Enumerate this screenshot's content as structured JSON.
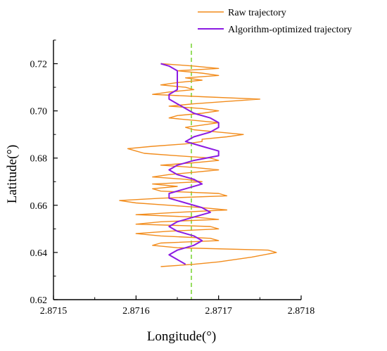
{
  "chart_data": {
    "type": "line",
    "xlabel": "Longitude(°)",
    "ylabel": "Latitude(°)",
    "xlim": [
      2.8715,
      2.8718
    ],
    "ylim": [
      0.62,
      0.73
    ],
    "x_ticks": [
      {
        "value": 2.8715,
        "label": "2.8715"
      },
      {
        "value": 2.8716,
        "label": "2.8716"
      },
      {
        "value": 2.8717,
        "label": "2.8717"
      },
      {
        "value": 2.8718,
        "label": "2.8718"
      }
    ],
    "y_ticks": [
      {
        "value": 0.62,
        "label": "0.62"
      },
      {
        "value": 0.64,
        "label": "0.64"
      },
      {
        "value": 0.66,
        "label": "0.66"
      },
      {
        "value": 0.68,
        "label": "0.68"
      },
      {
        "value": 0.7,
        "label": "0.70"
      },
      {
        "value": 0.72,
        "label": "0.72"
      }
    ],
    "legend_position": "top-right, outside plot",
    "grid": false,
    "reference_line": {
      "x": 2.871667,
      "style": "dashed",
      "color": "#7ed63a"
    },
    "series": [
      {
        "name": "Raw trajectory",
        "color": "#f28c1c",
        "points": [
          [
            2.87163,
            0.634
          ],
          [
            2.87167,
            0.635
          ],
          [
            2.8717,
            0.636
          ],
          [
            2.87174,
            0.638
          ],
          [
            2.87177,
            0.64
          ],
          [
            2.87176,
            0.641
          ],
          [
            2.87165,
            0.642
          ],
          [
            2.87162,
            0.643
          ],
          [
            2.87163,
            0.644
          ],
          [
            2.8717,
            0.645
          ],
          [
            2.87169,
            0.646
          ],
          [
            2.87163,
            0.647
          ],
          [
            2.8716,
            0.648
          ],
          [
            2.87164,
            0.649
          ],
          [
            2.8717,
            0.65
          ],
          [
            2.87169,
            0.651
          ],
          [
            2.8716,
            0.652
          ],
          [
            2.87163,
            0.653
          ],
          [
            2.8717,
            0.654
          ],
          [
            2.87167,
            0.655
          ],
          [
            2.8716,
            0.656
          ],
          [
            2.87165,
            0.657
          ],
          [
            2.87171,
            0.658
          ],
          [
            2.87168,
            0.659
          ],
          [
            2.87164,
            0.66
          ],
          [
            2.8716,
            0.661
          ],
          [
            2.87158,
            0.662
          ],
          [
            2.87163,
            0.663
          ],
          [
            2.87171,
            0.664
          ],
          [
            2.8717,
            0.665
          ],
          [
            2.87163,
            0.666
          ],
          [
            2.87162,
            0.667
          ],
          [
            2.87165,
            0.668
          ],
          [
            2.87162,
            0.669
          ],
          [
            2.87168,
            0.67
          ],
          [
            2.87166,
            0.671
          ],
          [
            2.87162,
            0.672
          ],
          [
            2.87164,
            0.673
          ],
          [
            2.87167,
            0.674
          ],
          [
            2.8717,
            0.675
          ],
          [
            2.87167,
            0.676
          ],
          [
            2.87163,
            0.677
          ],
          [
            2.87167,
            0.678
          ],
          [
            2.8717,
            0.679
          ],
          [
            2.87169,
            0.68
          ],
          [
            2.87165,
            0.681
          ],
          [
            2.87161,
            0.682
          ],
          [
            2.8716,
            0.683
          ],
          [
            2.87159,
            0.684
          ],
          [
            2.87162,
            0.685
          ],
          [
            2.87166,
            0.686
          ],
          [
            2.87168,
            0.687
          ],
          [
            2.87168,
            0.688
          ],
          [
            2.87171,
            0.689
          ],
          [
            2.87173,
            0.69
          ],
          [
            2.8717,
            0.691
          ],
          [
            2.87167,
            0.692
          ],
          [
            2.87166,
            0.693
          ],
          [
            2.87168,
            0.694
          ],
          [
            2.8717,
            0.695
          ],
          [
            2.87167,
            0.696
          ],
          [
            2.87164,
            0.697
          ],
          [
            2.87165,
            0.698
          ],
          [
            2.87168,
            0.699
          ],
          [
            2.8717,
            0.7
          ],
          [
            2.87168,
            0.701
          ],
          [
            2.87164,
            0.702
          ],
          [
            2.87167,
            0.703
          ],
          [
            2.87171,
            0.704
          ],
          [
            2.87175,
            0.705
          ],
          [
            2.87168,
            0.706
          ],
          [
            2.87162,
            0.707
          ],
          [
            2.87164,
            0.708
          ],
          [
            2.87167,
            0.709
          ],
          [
            2.87166,
            0.71
          ],
          [
            2.87163,
            0.711
          ],
          [
            2.87165,
            0.712
          ],
          [
            2.87168,
            0.713
          ],
          [
            2.87166,
            0.714
          ],
          [
            2.8717,
            0.715
          ],
          [
            2.87168,
            0.716
          ],
          [
            2.87165,
            0.717
          ],
          [
            2.8717,
            0.718
          ],
          [
            2.87167,
            0.719
          ],
          [
            2.87163,
            0.72
          ]
        ]
      },
      {
        "name": "Algorithm-optimized trajectory",
        "color": "#8b1be2",
        "points": [
          [
            2.87166,
            0.635
          ],
          [
            2.87165,
            0.637
          ],
          [
            2.87164,
            0.639
          ],
          [
            2.87165,
            0.641
          ],
          [
            2.87167,
            0.643
          ],
          [
            2.87168,
            0.645
          ],
          [
            2.87167,
            0.647
          ],
          [
            2.87165,
            0.649
          ],
          [
            2.87164,
            0.651
          ],
          [
            2.87165,
            0.653
          ],
          [
            2.87167,
            0.655
          ],
          [
            2.87169,
            0.657
          ],
          [
            2.87168,
            0.659
          ],
          [
            2.87166,
            0.661
          ],
          [
            2.87164,
            0.663
          ],
          [
            2.87164,
            0.665
          ],
          [
            2.87166,
            0.667
          ],
          [
            2.87168,
            0.669
          ],
          [
            2.87167,
            0.671
          ],
          [
            2.87165,
            0.673
          ],
          [
            2.87164,
            0.675
          ],
          [
            2.87165,
            0.677
          ],
          [
            2.87167,
            0.679
          ],
          [
            2.8717,
            0.681
          ],
          [
            2.8717,
            0.683
          ],
          [
            2.87168,
            0.685
          ],
          [
            2.87166,
            0.687
          ],
          [
            2.87167,
            0.689
          ],
          [
            2.87169,
            0.691
          ],
          [
            2.8717,
            0.693
          ],
          [
            2.8717,
            0.695
          ],
          [
            2.87169,
            0.697
          ],
          [
            2.87167,
            0.699
          ],
          [
            2.87166,
            0.701
          ],
          [
            2.87165,
            0.703
          ],
          [
            2.87164,
            0.705
          ],
          [
            2.87164,
            0.707
          ],
          [
            2.87165,
            0.709
          ],
          [
            2.87165,
            0.711
          ],
          [
            2.87165,
            0.713
          ],
          [
            2.87165,
            0.715
          ],
          [
            2.87165,
            0.717
          ],
          [
            2.87164,
            0.719
          ],
          [
            2.87163,
            0.72
          ]
        ]
      }
    ]
  }
}
